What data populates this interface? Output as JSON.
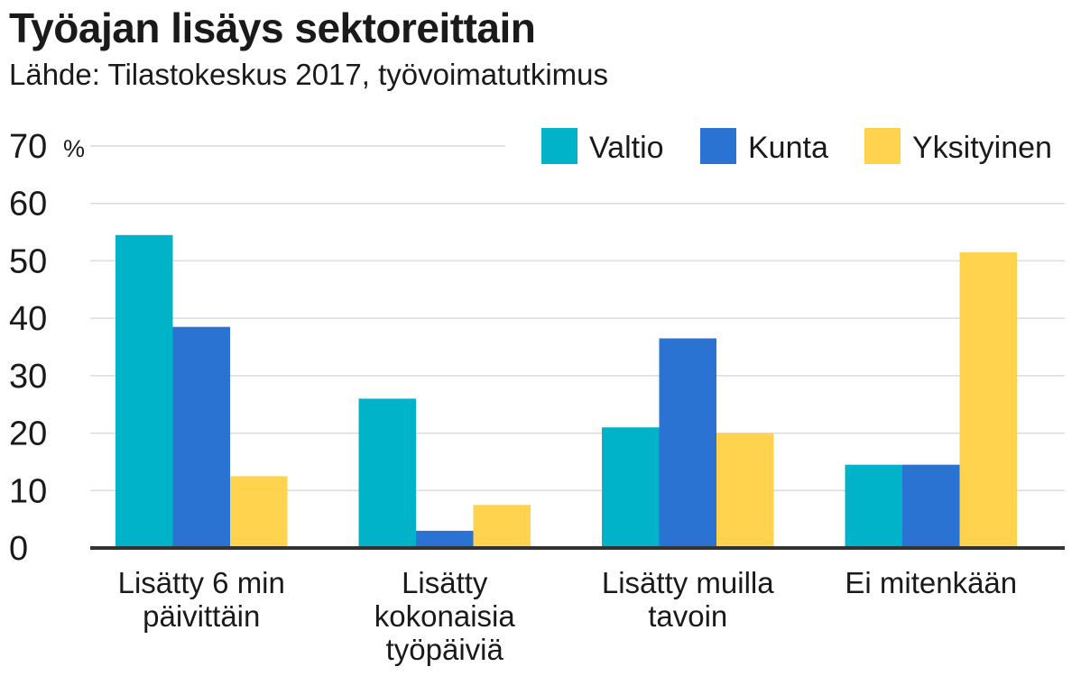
{
  "chart_data": {
    "type": "bar",
    "title": "Työajan lisäys sektoreittain",
    "subtitle": "Lähde: Tilastokeskus 2017, työvoimatutkimus",
    "unit": "%",
    "ylim": [
      0,
      70
    ],
    "yticks": [
      0,
      10,
      20,
      30,
      40,
      50,
      60,
      70
    ],
    "grid": true,
    "legend_position": "top-right",
    "categories": [
      [
        "Lisätty 6 min",
        "päivittäin"
      ],
      [
        "Lisätty",
        "kokonaisia",
        "työpäiviä"
      ],
      [
        "Lisätty muilla",
        "tavoin"
      ],
      [
        "Ei mitenkään"
      ]
    ],
    "series": [
      {
        "name": "Valtio",
        "color": "#00b3c8",
        "values": [
          54.5,
          26,
          21,
          14.5
        ]
      },
      {
        "name": "Kunta",
        "color": "#2b73d2",
        "values": [
          38.5,
          3,
          36.5,
          14.5
        ]
      },
      {
        "name": "Yksityinen",
        "color": "#ffd34d",
        "values": [
          12.5,
          7.5,
          20,
          51.5
        ]
      }
    ]
  }
}
